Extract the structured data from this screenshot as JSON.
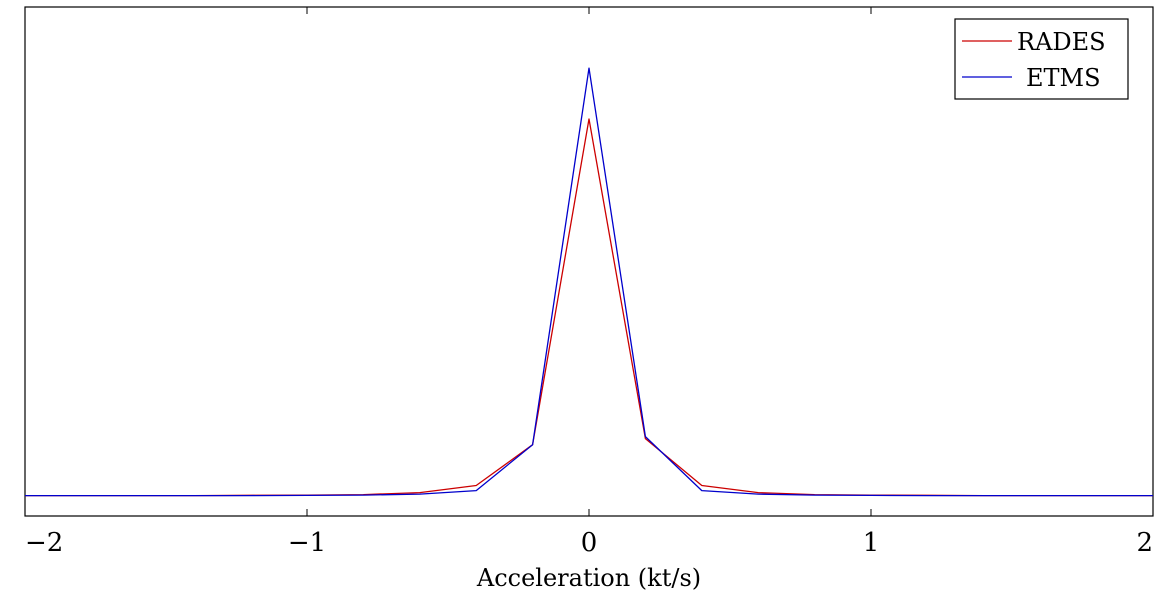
{
  "chart_data": {
    "type": "line",
    "xlabel": "Acceleration (kt/s)",
    "ylabel": "",
    "title": "",
    "xlim": [
      -2,
      2
    ],
    "ylim": [
      -0.02,
      0.48
    ],
    "xticks": [
      -2,
      -1,
      0,
      1,
      2
    ],
    "xtick_labels": [
      "−2",
      "−1",
      "0",
      "1",
      "2"
    ],
    "legend_position": "top-right",
    "grid": false,
    "series": [
      {
        "name": "RADES",
        "color": "#cc0000",
        "x": [
          -2,
          -1.8,
          -1.6,
          -1.4,
          -1.2,
          -1.0,
          -0.8,
          -0.6,
          -0.4,
          -0.2,
          0,
          0.2,
          0.4,
          0.6,
          0.8,
          1.0,
          1.2,
          1.4,
          1.6,
          1.8,
          2.0
        ],
        "y": [
          0,
          0,
          0,
          0,
          0.0003,
          0.0005,
          0.001,
          0.003,
          0.01,
          0.05,
          0.37,
          0.056,
          0.01,
          0.003,
          0.001,
          0.0005,
          0.0003,
          0,
          0,
          0,
          0
        ]
      },
      {
        "name": "ETMS",
        "color": "#0000cc",
        "x": [
          -2,
          -1.8,
          -1.6,
          -1.4,
          -1.2,
          -1.0,
          -0.8,
          -0.6,
          -0.4,
          -0.2,
          0,
          0.2,
          0.4,
          0.6,
          0.8,
          1.0,
          1.2,
          1.4,
          1.6,
          1.8,
          2.0
        ],
        "y": [
          0,
          0,
          0,
          0,
          0,
          0.0002,
          0.0005,
          0.0015,
          0.005,
          0.05,
          0.42,
          0.058,
          0.005,
          0.0015,
          0.0005,
          0.0002,
          0,
          0,
          0,
          0,
          0
        ]
      }
    ]
  }
}
